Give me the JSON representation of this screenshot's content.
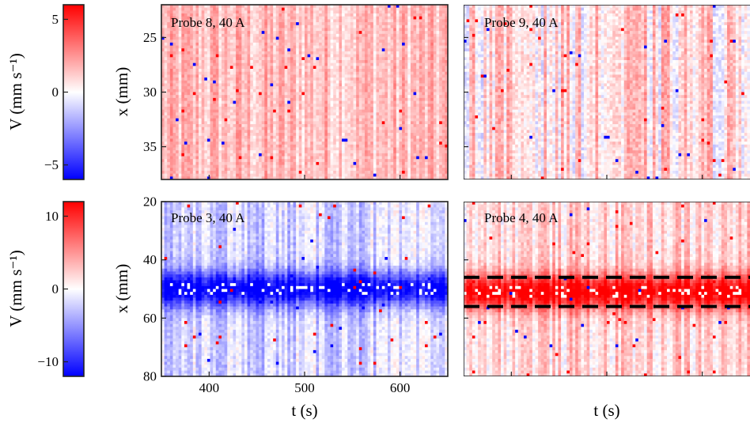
{
  "chart_data": [
    {
      "type": "heatmap",
      "id": "top_colorbar",
      "ylabel": "V (mm s⁻¹)",
      "ylim": [
        -6,
        6
      ],
      "ticks": [
        5,
        0,
        -5
      ],
      "tick_labels": [
        "5",
        "0",
        "−5"
      ],
      "colormap": "blue-white-red"
    },
    {
      "type": "heatmap",
      "id": "bottom_colorbar",
      "ylabel": "V (mm s⁻¹)",
      "ylim": [
        -12,
        12
      ],
      "ticks": [
        10,
        0,
        -10
      ],
      "tick_labels": [
        "10",
        "0",
        "−10"
      ],
      "colormap": "blue-white-red"
    },
    {
      "type": "heatmap",
      "id": "probe8",
      "annotation": "Probe 8, 40 A",
      "xlabel": "",
      "ylabel": "x (mm)",
      "xlim": [
        350,
        650
      ],
      "ylim": [
        22,
        38
      ],
      "y_reversed": true,
      "yticks": [
        25,
        30,
        35
      ],
      "ytick_labels": [
        "25",
        "30",
        "35"
      ],
      "xticks": [
        400,
        500,
        600
      ],
      "xtick_labels": [],
      "color_bias": 1.5,
      "noise": 1.2,
      "dashed_lines_y": []
    },
    {
      "type": "heatmap",
      "id": "probe9",
      "annotation": "Probe 9, 40 A",
      "xlabel": "",
      "ylabel": "",
      "xlim": [
        350,
        650
      ],
      "ylim": [
        22,
        38
      ],
      "y_reversed": true,
      "yticks": [
        25,
        30,
        35
      ],
      "ytick_labels": [],
      "xticks": [
        400,
        500,
        600
      ],
      "xtick_labels": [],
      "color_bias": 0.8,
      "noise": 1.6,
      "dashed_lines_y": []
    },
    {
      "type": "heatmap",
      "id": "probe3",
      "annotation": "Probe 3, 40 A",
      "xlabel": "t (s)",
      "ylabel": "x (mm)",
      "xlim": [
        350,
        650
      ],
      "ylim": [
        20,
        80
      ],
      "y_reversed": true,
      "yticks": [
        20,
        40,
        60,
        80
      ],
      "ytick_labels": [
        "20",
        "40",
        "60",
        "80"
      ],
      "xticks": [
        400,
        500,
        600
      ],
      "xtick_labels": [
        "400",
        "500",
        "600"
      ],
      "band_center": 50,
      "band_width": 6,
      "band_value": -11,
      "color_bias": -2,
      "noise": 2.5,
      "dashed_lines_y": []
    },
    {
      "type": "heatmap",
      "id": "probe4",
      "annotation": "Probe 4, 40 A",
      "xlabel": "t (s)",
      "ylabel": "",
      "xlim": [
        350,
        650
      ],
      "ylim": [
        20,
        80
      ],
      "y_reversed": true,
      "yticks": [
        20,
        40,
        60,
        80
      ],
      "ytick_labels": [],
      "xticks": [
        400,
        500,
        600
      ],
      "xtick_labels": [
        "400",
        "500",
        "600"
      ],
      "band_center": 51,
      "band_width": 6,
      "band_value": 11,
      "color_bias": 2,
      "noise": 2.5,
      "dashed_lines_y": [
        46,
        56
      ]
    }
  ]
}
